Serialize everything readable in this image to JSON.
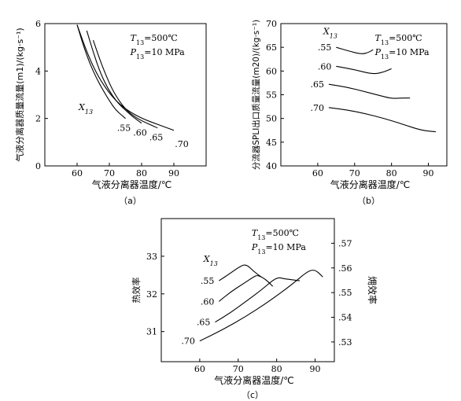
{
  "chart_data": [
    {
      "type": "line",
      "panel_label": "（a）",
      "xlabel": "气液分离器温度/℃",
      "ylabel": "气液分离器质量流量(m1)/(kg·s⁻¹)",
      "xlim": [
        50,
        100
      ],
      "ylim": [
        0,
        6
      ],
      "xticks": [
        "60",
        "70",
        "80",
        "90"
      ],
      "yticks": [
        "0",
        "2",
        "4",
        "6"
      ],
      "annotations": [
        "T13=500℃",
        "P13=10 MPa"
      ],
      "group_label": "X13",
      "grid": false,
      "series": [
        {
          "name": ".55",
          "x": [
            60,
            62,
            64,
            66,
            68,
            70,
            72,
            75
          ],
          "y": [
            5.95,
            5.05,
            4.3,
            3.7,
            3.2,
            2.75,
            2.35,
            2.0
          ]
        },
        {
          "name": ".60",
          "x": [
            63,
            65,
            67,
            69,
            71,
            73,
            75,
            77,
            80
          ],
          "y": [
            5.7,
            4.8,
            4.0,
            3.4,
            2.95,
            2.6,
            2.35,
            2.1,
            1.8
          ]
        },
        {
          "name": ".65",
          "x": [
            65,
            67,
            69,
            71,
            73,
            75,
            77,
            80,
            85
          ],
          "y": [
            5.3,
            4.5,
            3.8,
            3.2,
            2.75,
            2.4,
            2.15,
            1.9,
            1.6
          ]
        },
        {
          "name": ".70",
          "x": [
            60,
            63,
            66,
            69,
            72,
            75,
            78,
            81,
            84,
            87,
            90
          ],
          "y": [
            5.95,
            4.8,
            3.9,
            3.25,
            2.75,
            2.4,
            2.15,
            1.95,
            1.8,
            1.65,
            1.5
          ]
        }
      ]
    },
    {
      "type": "line",
      "panel_label": "（b）",
      "xlabel": "气液分离器温度/℃",
      "ylabel": "分流器SPLI出口质量流量(m20)/(kg·s⁻¹)",
      "xlim": [
        50,
        95
      ],
      "ylim": [
        40,
        70
      ],
      "xticks": [
        "60",
        "70",
        "80",
        "90"
      ],
      "yticks": [
        "40",
        "45",
        "50",
        "55",
        "60",
        "65",
        "70"
      ],
      "annotations": [
        "T13=500℃",
        "P13=10 MPa"
      ],
      "group_label": "X13",
      "grid": false,
      "series": [
        {
          "name": ".55",
          "x": [
            65,
            68,
            72,
            74,
            75
          ],
          "y": [
            65.0,
            64.3,
            63.5,
            64.0,
            64.5
          ]
        },
        {
          "name": ".60",
          "x": [
            65,
            70,
            75,
            78,
            80
          ],
          "y": [
            61.0,
            60.3,
            59.3,
            59.8,
            60.5
          ]
        },
        {
          "name": ".65",
          "x": [
            63,
            68,
            73,
            76,
            80,
            82,
            85
          ],
          "y": [
            57.2,
            56.6,
            55.6,
            55.0,
            54.2,
            54.3,
            54.3
          ]
        },
        {
          "name": ".70",
          "x": [
            63,
            68,
            73,
            78,
            83,
            88,
            92
          ],
          "y": [
            52.3,
            51.8,
            51.0,
            50.0,
            48.8,
            47.5,
            47.2
          ]
        }
      ]
    },
    {
      "type": "line",
      "panel_label": "（c）",
      "xlabel": "气液分离器温度/℃",
      "ylabel": "热效率",
      "y2label": "㶲效率",
      "xlim": [
        50,
        95
      ],
      "ylim": [
        30.2,
        34.0
      ],
      "y2lim": [
        0.522,
        0.58
      ],
      "xticks": [
        "60",
        "70",
        "80",
        "90"
      ],
      "yticks": [
        "31",
        "32",
        "33"
      ],
      "y2ticks": [
        ".53",
        ".54",
        ".55",
        ".56",
        ".57"
      ],
      "annotations": [
        "T13=500℃",
        "P13=10 MPa"
      ],
      "group_label": "X13",
      "grid": false,
      "series": [
        {
          "name": ".55",
          "x": [
            65,
            68,
            70,
            72,
            74,
            76
          ],
          "y": [
            32.35,
            32.55,
            32.7,
            32.8,
            32.6,
            32.45
          ]
        },
        {
          "name": ".60",
          "x": [
            65,
            68,
            71,
            74,
            75,
            77,
            79
          ],
          "y": [
            31.8,
            32.05,
            32.25,
            32.45,
            32.5,
            32.4,
            32.2
          ]
        },
        {
          "name": ".65",
          "x": [
            64,
            68,
            72,
            76,
            80,
            82,
            86
          ],
          "y": [
            31.25,
            31.5,
            31.8,
            32.1,
            32.45,
            32.4,
            32.35
          ]
        },
        {
          "name": ".70",
          "x": [
            60,
            66,
            72,
            78,
            84,
            88,
            90,
            92
          ],
          "y": [
            30.75,
            31.05,
            31.4,
            31.8,
            32.25,
            32.6,
            32.65,
            32.45
          ]
        }
      ]
    }
  ]
}
